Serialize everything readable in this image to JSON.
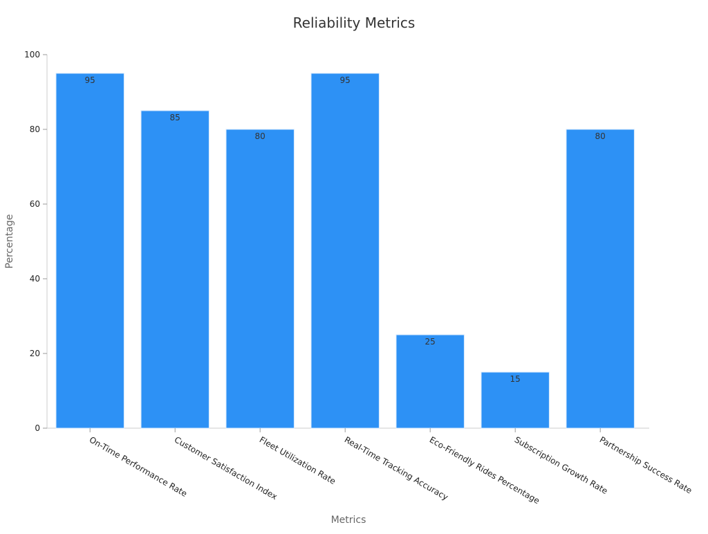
{
  "chart_data": {
    "type": "bar",
    "title": "Reliability Metrics",
    "xlabel": "Metrics",
    "ylabel": "Percentage",
    "categories": [
      "On-Time Performance Rate",
      "Customer Satisfaction Index",
      "Fleet Utilization Rate",
      "Real-Time Tracking Accuracy",
      "Eco-Friendly Rides Percentage",
      "Subscription Growth Rate",
      "Partnership Success Rate"
    ],
    "values": [
      95,
      85,
      80,
      95,
      25,
      15,
      80
    ],
    "ylim": [
      0,
      100
    ],
    "yticks": [
      0,
      20,
      40,
      60,
      80,
      100
    ],
    "grid": false,
    "bar_color": "#2d91f5",
    "bar_stroke": "#d6e9fd"
  }
}
